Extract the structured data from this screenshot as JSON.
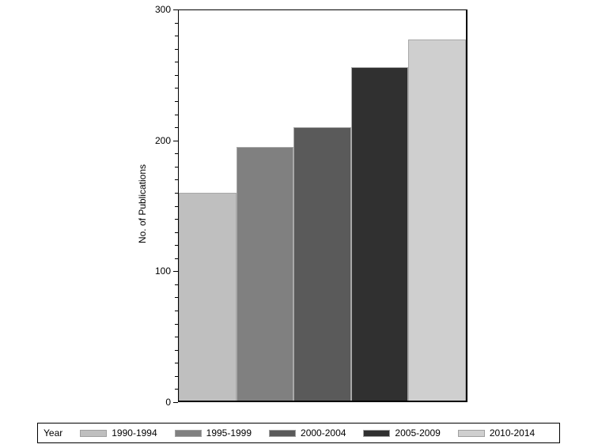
{
  "chart_data": {
    "type": "bar",
    "title": "",
    "xlabel": "",
    "ylabel": "No. of Publications",
    "ylim": [
      0,
      300
    ],
    "yticks": [
      0,
      100,
      200,
      300
    ],
    "minor_tick_step": 10,
    "categories": [
      "1990-1994",
      "1995-1999",
      "2000-2004",
      "2005-2009",
      "2010-2014"
    ],
    "values": [
      159,
      194,
      209,
      255,
      276
    ],
    "colors": [
      "#bfbfbf",
      "#808080",
      "#5a5a5a",
      "#303030",
      "#cfcfcf"
    ],
    "legend_title": "Year",
    "legend_position": "bottom",
    "grid": false
  },
  "axis": {
    "ylabel": "No. of Publications",
    "tick_labels": [
      "0",
      "100",
      "200",
      "300"
    ]
  },
  "legend": {
    "title": "Year",
    "items": [
      {
        "label": "1990-1994",
        "color": "#bfbfbf"
      },
      {
        "label": "1995-1999",
        "color": "#808080"
      },
      {
        "label": "2000-2004",
        "color": "#5a5a5a"
      },
      {
        "label": "2005-2009",
        "color": "#303030"
      },
      {
        "label": "2010-2014",
        "color": "#cfcfcf"
      }
    ]
  }
}
